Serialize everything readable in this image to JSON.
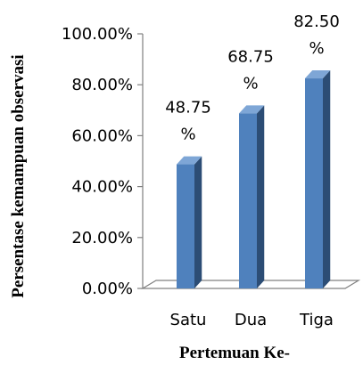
{
  "chart_data": {
    "type": "bar",
    "categories": [
      "Satu",
      "Dua",
      "Tiga"
    ],
    "values": [
      48.75,
      68.75,
      82.5
    ],
    "data_labels": [
      [
        "48.75",
        "%"
      ],
      [
        "68.75",
        "%"
      ],
      [
        "82.50",
        "%"
      ]
    ],
    "xlabel": "Pertemuan Ke-",
    "ylabel": "Persentase kemampuan observasi",
    "ylim": [
      0,
      100
    ],
    "yticks": [
      0,
      20,
      40,
      60,
      80,
      100
    ],
    "ytick_labels": [
      "0.00%",
      "20.00%",
      "40.00%",
      "60.00%",
      "80.00%",
      "100.00%"
    ],
    "grid": false,
    "style": "3d-column",
    "colors": {
      "bar_front": "#4F81BD",
      "bar_side": "#2C4D75",
      "bar_top": "#7EA6D6",
      "axis": "#808080"
    }
  }
}
